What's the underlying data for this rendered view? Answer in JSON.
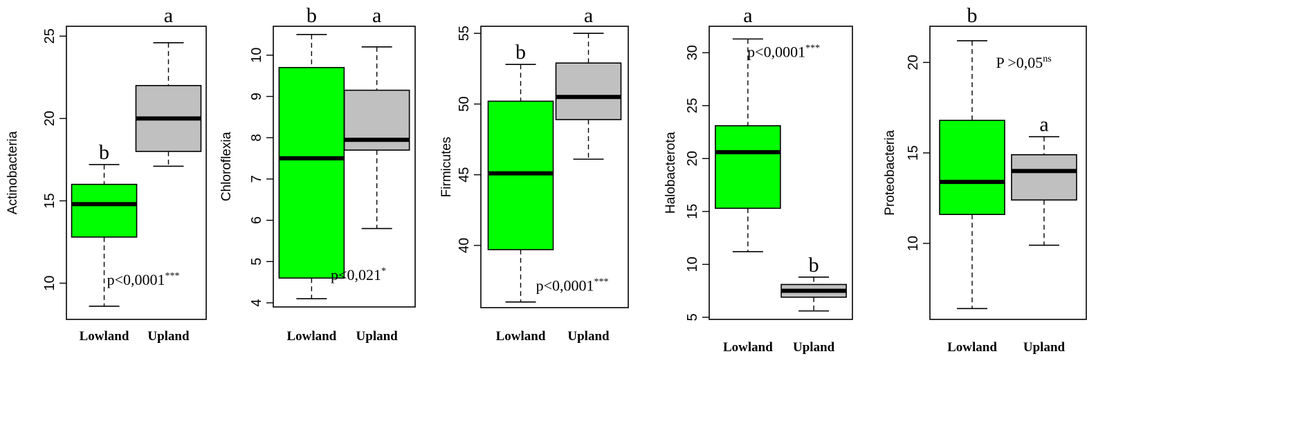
{
  "colors": {
    "lowland": "#00ff00",
    "upland": "#c0c0c0",
    "frame": "#000000"
  },
  "chart_data": [
    {
      "type": "box",
      "ylabel": "Actinobacteria",
      "yticks": [
        10,
        15,
        20,
        25
      ],
      "ylim": [
        7.8,
        25.6
      ],
      "categories": [
        "Lowland",
        "Upland"
      ],
      "boxes": [
        {
          "name": "Lowland",
          "min": 8.6,
          "q1": 12.8,
          "median": 14.8,
          "q3": 16.0,
          "max": 17.2,
          "letter": "b"
        },
        {
          "name": "Upland",
          "min": 17.1,
          "q1": 18.0,
          "median": 20.0,
          "q3": 22.0,
          "max": 24.6,
          "letter": "a"
        }
      ],
      "p_text": "p<0,0001",
      "p_sup": "***",
      "p_pos": {
        "x": 0.55,
        "y": 9.9
      }
    },
    {
      "type": "box",
      "ylabel": "Chloroflexia",
      "yticks": [
        4,
        5,
        6,
        7,
        8,
        9,
        10
      ],
      "ylim": [
        3.9,
        10.7
      ],
      "categories": [
        "Lowland",
        "Upland"
      ],
      "boxes": [
        {
          "name": "Lowland",
          "min": 4.1,
          "q1": 4.6,
          "median": 7.5,
          "q3": 9.7,
          "max": 10.5,
          "letter": "b"
        },
        {
          "name": "Upland",
          "min": 5.8,
          "q1": 7.7,
          "median": 7.95,
          "q3": 9.15,
          "max": 10.2,
          "letter": "a"
        }
      ],
      "p_text": "p<0,021",
      "p_sup": "*",
      "p_pos": {
        "x": 0.6,
        "y": 4.55
      }
    },
    {
      "type": "box",
      "ylabel": "Firmicutes",
      "yticks": [
        40,
        45,
        50,
        55
      ],
      "ylim": [
        35.6,
        55.5
      ],
      "categories": [
        "Lowland",
        "Upland"
      ],
      "boxes": [
        {
          "name": "Lowland",
          "min": 36.0,
          "q1": 39.7,
          "median": 45.1,
          "q3": 50.2,
          "max": 52.8,
          "letter": "b"
        },
        {
          "name": "Upland",
          "min": 46.1,
          "q1": 48.9,
          "median": 50.5,
          "q3": 52.9,
          "max": 55.0,
          "letter": "a"
        }
      ],
      "p_text": "p<0,0001",
      "p_sup": "***",
      "p_pos": {
        "x": 0.62,
        "y": 36.8
      }
    },
    {
      "type": "box",
      "ylabel": "Halobacterota",
      "yticks": [
        5,
        10,
        15,
        20,
        25,
        30
      ],
      "ylim": [
        4.8,
        32.5
      ],
      "categories": [
        "Lowland",
        "Upland"
      ],
      "boxes": [
        {
          "name": "Lowland",
          "min": 11.2,
          "q1": 15.3,
          "median": 20.6,
          "q3": 23.1,
          "max": 31.3,
          "letter": "a"
        },
        {
          "name": "Upland",
          "min": 5.6,
          "q1": 6.9,
          "median": 7.5,
          "q3": 8.1,
          "max": 8.8,
          "letter": "b"
        }
      ],
      "p_text": "p<0,0001",
      "p_sup": "***",
      "p_pos": {
        "x": 0.52,
        "y": 29.6
      }
    },
    {
      "type": "box",
      "ylabel": "Proteobacteria",
      "yticks": [
        10,
        15,
        20
      ],
      "ylim": [
        5.8,
        22.0
      ],
      "categories": [
        "Lowland",
        "Upland"
      ],
      "boxes": [
        {
          "name": "Lowland",
          "min": 6.4,
          "q1": 11.6,
          "median": 13.4,
          "q3": 16.8,
          "max": 21.2,
          "letter": "b"
        },
        {
          "name": "Upland",
          "min": 9.9,
          "q1": 12.4,
          "median": 14.0,
          "q3": 14.9,
          "max": 15.9,
          "letter": "a"
        }
      ],
      "p_text": "P >0,05",
      "p_sup": "ns",
      "p_pos": {
        "x": 0.6,
        "y": 19.7
      }
    }
  ]
}
